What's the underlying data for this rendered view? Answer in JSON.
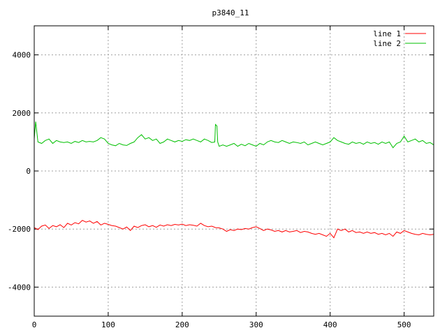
{
  "chart_data": {
    "type": "line",
    "title": "p3840_11",
    "xlabel": "",
    "ylabel": "",
    "xlim": [
      0,
      540
    ],
    "ylim": [
      -5000,
      5000
    ],
    "xticks": [
      0,
      100,
      200,
      300,
      400,
      500
    ],
    "yticks": [
      -4000,
      -2000,
      0,
      2000,
      4000
    ],
    "grid": true,
    "legend": "top-right",
    "series": [
      {
        "name": "line 1",
        "color": "#ff0000",
        "x": [
          0,
          5,
          10,
          15,
          20,
          25,
          30,
          35,
          40,
          45,
          50,
          55,
          60,
          65,
          70,
          75,
          80,
          85,
          90,
          95,
          100,
          105,
          110,
          115,
          120,
          125,
          130,
          135,
          140,
          145,
          150,
          155,
          160,
          165,
          170,
          175,
          180,
          185,
          190,
          195,
          200,
          205,
          210,
          215,
          220,
          225,
          230,
          235,
          240,
          245,
          250,
          255,
          260,
          265,
          270,
          275,
          280,
          285,
          290,
          295,
          300,
          305,
          310,
          315,
          320,
          325,
          330,
          335,
          340,
          345,
          350,
          355,
          360,
          365,
          370,
          375,
          380,
          385,
          390,
          395,
          400,
          405,
          410,
          415,
          420,
          425,
          430,
          435,
          440,
          445,
          450,
          455,
          460,
          465,
          470,
          475,
          480,
          485,
          490,
          495,
          500,
          505,
          510,
          515,
          520,
          525,
          530,
          535,
          540
        ],
        "values": [
          -1950,
          -2020,
          -1900,
          -1860,
          -1980,
          -1880,
          -1920,
          -1850,
          -1950,
          -1800,
          -1860,
          -1780,
          -1820,
          -1700,
          -1760,
          -1720,
          -1800,
          -1740,
          -1860,
          -1800,
          -1840,
          -1880,
          -1900,
          -1950,
          -2000,
          -1930,
          -2050,
          -1900,
          -1950,
          -1880,
          -1850,
          -1920,
          -1880,
          -1940,
          -1860,
          -1900,
          -1850,
          -1880,
          -1840,
          -1860,
          -1830,
          -1880,
          -1850,
          -1870,
          -1900,
          -1800,
          -1880,
          -1920,
          -1900,
          -1950,
          -1960,
          -2000,
          -2080,
          -2020,
          -2050,
          -2000,
          -2020,
          -1980,
          -2000,
          -1950,
          -1920,
          -1980,
          -2050,
          -2000,
          -2030,
          -2080,
          -2050,
          -2100,
          -2050,
          -2100,
          -2080,
          -2050,
          -2120,
          -2080,
          -2100,
          -2150,
          -2180,
          -2150,
          -2200,
          -2250,
          -2150,
          -2300,
          -2000,
          -2050,
          -2000,
          -2100,
          -2050,
          -2120,
          -2100,
          -2150,
          -2100,
          -2150,
          -2120,
          -2180,
          -2150,
          -2200,
          -2150,
          -2250,
          -2100,
          -2150,
          -2050,
          -2100,
          -2150,
          -2180,
          -2200,
          -2150,
          -2180,
          -2200,
          -2180
        ]
      },
      {
        "name": "line 2",
        "color": "#00c000",
        "x": [
          0,
          2,
          5,
          10,
          15,
          20,
          25,
          30,
          35,
          40,
          45,
          50,
          55,
          60,
          65,
          70,
          75,
          80,
          85,
          90,
          95,
          100,
          105,
          110,
          115,
          120,
          125,
          130,
          135,
          140,
          145,
          150,
          155,
          160,
          165,
          170,
          175,
          180,
          185,
          190,
          195,
          200,
          205,
          210,
          215,
          220,
          225,
          230,
          235,
          240,
          244,
          245,
          247,
          248,
          250,
          255,
          260,
          265,
          270,
          275,
          280,
          285,
          290,
          295,
          300,
          305,
          310,
          315,
          320,
          325,
          330,
          335,
          340,
          345,
          350,
          355,
          360,
          365,
          370,
          375,
          380,
          385,
          390,
          395,
          400,
          405,
          410,
          415,
          420,
          425,
          430,
          435,
          440,
          445,
          450,
          455,
          460,
          465,
          470,
          475,
          480,
          485,
          490,
          495,
          500,
          505,
          510,
          515,
          520,
          525,
          530,
          535,
          540
        ],
        "values": [
          1100,
          1700,
          1000,
          950,
          1050,
          1100,
          950,
          1050,
          1000,
          980,
          1000,
          950,
          1020,
          980,
          1050,
          1000,
          1020,
          1000,
          1050,
          1150,
          1100,
          950,
          900,
          870,
          950,
          900,
          880,
          950,
          1000,
          1150,
          1250,
          1100,
          1150,
          1050,
          1100,
          950,
          1000,
          1100,
          1050,
          1000,
          1050,
          1020,
          1080,
          1050,
          1100,
          1050,
          1000,
          1100,
          1050,
          980,
          1000,
          1600,
          1550,
          1000,
          850,
          900,
          850,
          900,
          950,
          850,
          920,
          870,
          950,
          900,
          850,
          950,
          900,
          1000,
          1050,
          1000,
          980,
          1050,
          1000,
          950,
          1000,
          980,
          950,
          1000,
          900,
          950,
          1000,
          950,
          900,
          950,
          1000,
          1150,
          1050,
          1000,
          950,
          920,
          1000,
          950,
          980,
          920,
          1000,
          950,
          980,
          920,
          1000,
          950,
          1000,
          800,
          950,
          1000,
          1200,
          1000,
          1050,
          1100,
          1000,
          1050,
          950,
          980,
          900
        ]
      }
    ]
  }
}
